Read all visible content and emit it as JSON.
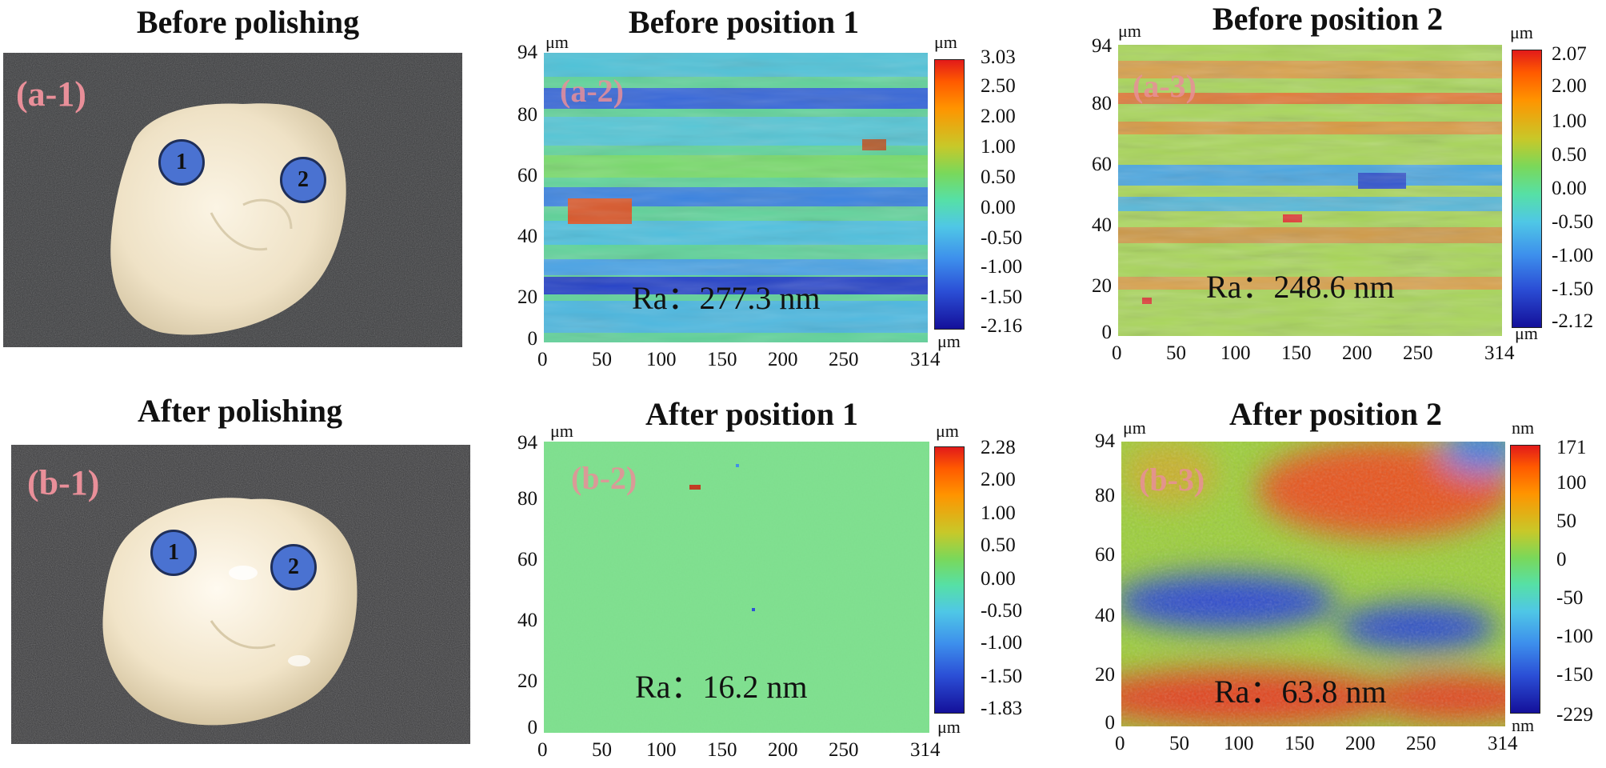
{
  "titles": {
    "before_polishing": "Before polishing",
    "after_polishing": "After polishing",
    "before_pos1": "Before position 1",
    "before_pos2": "Before position 2",
    "after_pos1": "After position 1",
    "after_pos2": "After position 2"
  },
  "panel_labels": {
    "a1": "(a-1)",
    "a2": "(a-2)",
    "a3": "(a-3)",
    "b1": "(b-1)",
    "b2": "(b-2)",
    "b3": "(b-3)"
  },
  "markers": {
    "one": "1",
    "two": "2"
  },
  "axis": {
    "unit": "μm",
    "y_ticks": [
      "94",
      "80",
      "60",
      "40",
      "20",
      "0"
    ],
    "x_ticks": [
      "0",
      "50",
      "100",
      "150",
      "200",
      "250",
      "314"
    ]
  },
  "colorbars": {
    "a2": {
      "unit_top": "μm",
      "unit_bottom": "μm",
      "ticks": [
        "3.03",
        "2.50",
        "2.00",
        "1.00",
        "0.50",
        "0.00",
        "-0.50",
        "-1.00",
        "-1.50",
        "-2.16"
      ]
    },
    "a3": {
      "unit_top": "μm",
      "unit_bottom": "μm",
      "ticks": [
        "2.07",
        "2.00",
        "1.00",
        "0.50",
        "0.00",
        "-0.50",
        "-1.00",
        "-1.50",
        "-2.12"
      ]
    },
    "b2": {
      "unit_top": "μm",
      "unit_bottom": "μm",
      "ticks": [
        "2.28",
        "2.00",
        "1.00",
        "0.50",
        "0.00",
        "-0.50",
        "-1.00",
        "-1.50",
        "-1.83"
      ]
    },
    "b3": {
      "unit_top": "nm",
      "unit_bottom": "nm",
      "ticks": [
        "171",
        "100",
        "50",
        "0",
        "-50",
        "-100",
        "-150",
        "-229"
      ]
    }
  },
  "roughness": {
    "a2": "Ra：277.3 nm",
    "a3": "Ra：248.6 nm",
    "b2": "Ra：16.2 nm",
    "b3": "Ra：63.8 nm"
  }
}
